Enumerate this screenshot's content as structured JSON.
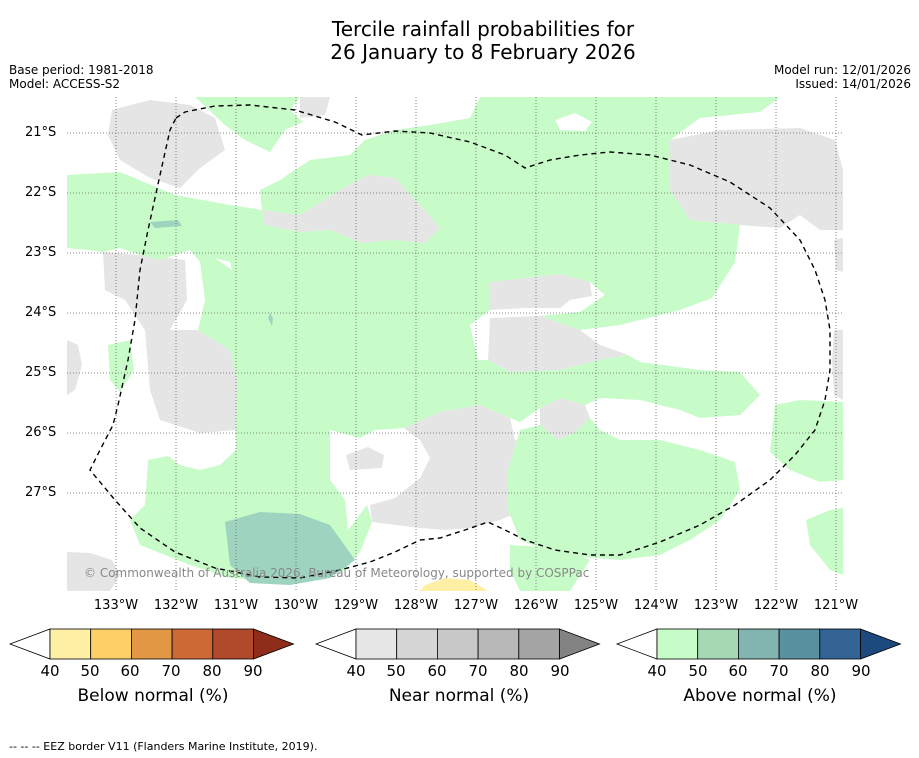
{
  "title": {
    "line1": "Tercile rainfall probabilities for",
    "line2": "26 January to 8 February 2026"
  },
  "meta_left": {
    "base_period": "Base period: 1981-2018",
    "model": "Model: ACCESS-S2"
  },
  "meta_right": {
    "model_run": "Model run: 12/01/2026",
    "issued": "Issued: 14/01/2026"
  },
  "map": {
    "lat_labels": [
      "21°S",
      "22°S",
      "23°S",
      "24°S",
      "25°S",
      "26°S",
      "27°S"
    ],
    "lon_labels": [
      "133°W",
      "132°W",
      "131°W",
      "130°W",
      "129°W",
      "128°W",
      "127°W",
      "126°W",
      "125°W",
      "124°W",
      "123°W",
      "122°W",
      "121°W"
    ],
    "copyright": "© Commonwealth of Australia 2026, Bureau of Meteorology, supported by COSPPac",
    "colors": {
      "near_normal_light": "#e5e5e5",
      "above_normal_light": "#c7fcc8",
      "above_normal_mid": "#9ed3c0",
      "below_normal_light": "#fff0a5",
      "border_line": "#000000"
    }
  },
  "colorbars": {
    "tick_values": [
      "40",
      "50",
      "60",
      "70",
      "80",
      "90"
    ],
    "below": {
      "title": "Below normal (%)",
      "colors": [
        "#ffffff",
        "#fff0a5",
        "#fdd067",
        "#e19746",
        "#cd6837",
        "#b04a2a",
        "#8e2e1a"
      ]
    },
    "near": {
      "title": "Near normal (%)",
      "colors": [
        "#ffffff",
        "#e6e6e6",
        "#d6d6d6",
        "#c8c8c8",
        "#b8b8b8",
        "#a4a4a4",
        "#838383"
      ]
    },
    "above": {
      "title": "Above normal (%)",
      "colors": [
        "#ffffff",
        "#c7fcc8",
        "#a6d8b6",
        "#83b5b0",
        "#5a91a0",
        "#336494",
        "#1c4a7f"
      ]
    }
  },
  "footer": "--  --  -- EEZ border V11 (Flanders Marine Institute, 2019)."
}
